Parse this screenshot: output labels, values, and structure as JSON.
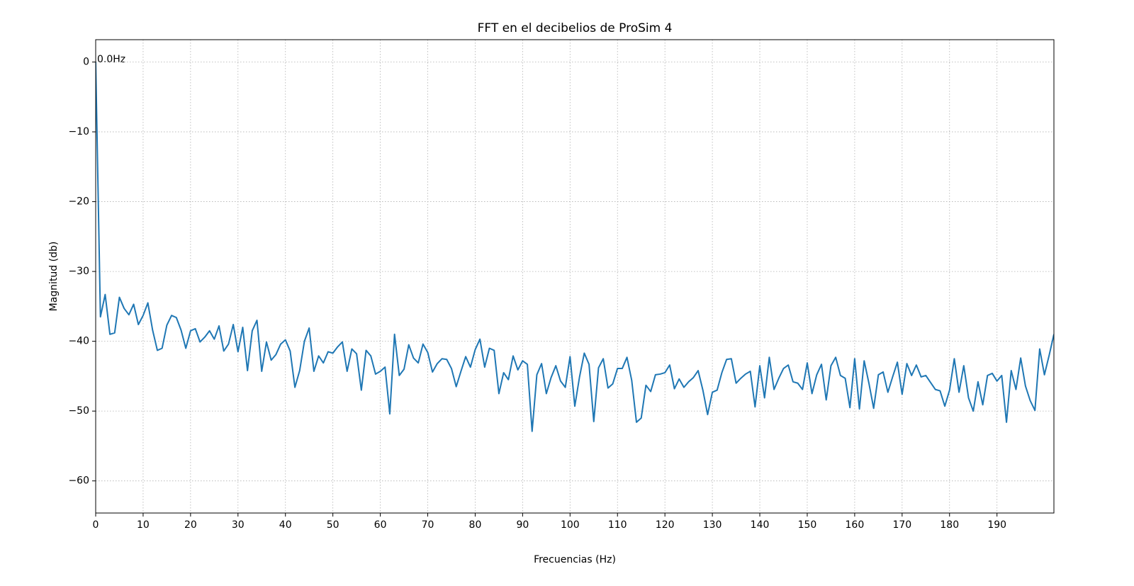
{
  "chart_data": {
    "type": "line",
    "title": "FFT en el decibelios de ProSim 4",
    "x_label": "Frecuencias (Hz)",
    "y_label": "Magnitud (db)",
    "annotation": "0.0Hz",
    "grid": true,
    "xlim": [
      0,
      202
    ],
    "ylim": [
      -64.6,
      3.2
    ],
    "xticks": [
      0,
      10,
      20,
      30,
      40,
      50,
      60,
      70,
      80,
      90,
      100,
      110,
      120,
      130,
      140,
      150,
      160,
      170,
      180,
      190
    ],
    "yticks": [
      0,
      {
        "value": -10,
        "label": "−10"
      },
      {
        "value": -20,
        "label": "−20"
      },
      {
        "value": -30,
        "label": "−30"
      },
      {
        "value": -40,
        "label": "−40"
      },
      {
        "value": -50,
        "label": "−50"
      },
      {
        "value": -60,
        "label": "−60"
      }
    ],
    "x": [
      0,
      1,
      2,
      3,
      4,
      5,
      6,
      7,
      8,
      9,
      10,
      11,
      12,
      13,
      14,
      15,
      16,
      17,
      18,
      19,
      20,
      21,
      22,
      23,
      24,
      25,
      26,
      27,
      28,
      29,
      30,
      31,
      32,
      33,
      34,
      35,
      36,
      37,
      38,
      39,
      40,
      41,
      42,
      43,
      44,
      45,
      46,
      47,
      48,
      49,
      50,
      51,
      52,
      53,
      54,
      55,
      56,
      57,
      58,
      59,
      60,
      61,
      62,
      63,
      64,
      65,
      66,
      67,
      68,
      69,
      70,
      71,
      72,
      73,
      74,
      75,
      76,
      77,
      78,
      79,
      80,
      81,
      82,
      83,
      84,
      85,
      86,
      87,
      88,
      89,
      90,
      91,
      92,
      93,
      94,
      95,
      96,
      97,
      98,
      99,
      100,
      101,
      102,
      103,
      104,
      105,
      106,
      107,
      108,
      109,
      110,
      111,
      112,
      113,
      114,
      115,
      116,
      117,
      118,
      119,
      120,
      121,
      122,
      123,
      124,
      125,
      126,
      127,
      128,
      129,
      130,
      131,
      132,
      133,
      134,
      135,
      136,
      137,
      138,
      139,
      140,
      141,
      142,
      143,
      144,
      145,
      146,
      147,
      148,
      149,
      150,
      151,
      152,
      153,
      154,
      155,
      156,
      157,
      158,
      159,
      160,
      161,
      162,
      163,
      164,
      165,
      166,
      167,
      168,
      169,
      170,
      171,
      172,
      173,
      174,
      175,
      176,
      177,
      178,
      179,
      180,
      181,
      182,
      183,
      184,
      185,
      186,
      187,
      188,
      189,
      190,
      191,
      192,
      193,
      194,
      195,
      196,
      197,
      198,
      199,
      200,
      201,
      202
    ],
    "series": [
      {
        "color": "#1f77b4",
        "values": [
          0,
          -36.5,
          -33.3,
          -39,
          -38.8,
          -33.7,
          -35.3,
          -36.2,
          -34.7,
          -37.6,
          -36.3,
          -34.5,
          -38.4,
          -41.3,
          -41,
          -37.7,
          -36.3,
          -36.6,
          -38.4,
          -41,
          -38.5,
          -38.2,
          -40.1,
          -39.4,
          -38.5,
          -39.7,
          -37.8,
          -41.4,
          -40.4,
          -37.6,
          -41.5,
          -38,
          -44.2,
          -38.5,
          -37,
          -44.3,
          -40.1,
          -42.7,
          -41.9,
          -40.4,
          -39.8,
          -41.4,
          -46.6,
          -44.2,
          -40,
          -38.1,
          -44.3,
          -42.1,
          -43.1,
          -41.5,
          -41.7,
          -40.8,
          -40.1,
          -44.3,
          -41.1,
          -41.8,
          -47,
          -41.3,
          -42.1,
          -44.7,
          -44.3,
          -43.7,
          -50.4,
          -39,
          -44.9,
          -44,
          -40.5,
          -42.4,
          -43.1,
          -40.4,
          -41.6,
          -44.4,
          -43.2,
          -42.5,
          -42.6,
          -43.9,
          -46.5,
          -44.3,
          -42.2,
          -43.7,
          -41.2,
          -39.7,
          -43.7,
          -41,
          -41.3,
          -47.5,
          -44.5,
          -45.5,
          -42.1,
          -44.1,
          -42.8,
          -43.3,
          -52.9,
          -44.8,
          -43.2,
          -47.5,
          -45.2,
          -43.5,
          -45.7,
          -46.6,
          -42.2,
          -49.3,
          -45.1,
          -41.7,
          -43.3,
          -51.5,
          -43.8,
          -42.5,
          -46.7,
          -46.1,
          -43.9,
          -43.9,
          -42.3,
          -45.6,
          -51.6,
          -51,
          -46.3,
          -47.2,
          -44.8,
          -44.7,
          -44.5,
          -43.4,
          -46.8,
          -45.4,
          -46.6,
          -45.8,
          -45.2,
          -44.2,
          -47,
          -50.5,
          -47.3,
          -47,
          -44.5,
          -42.6,
          -42.5,
          -46,
          -45.3,
          -44.7,
          -44.3,
          -49.4,
          -43.5,
          -48.1,
          -42.3,
          -46.9,
          -45.3,
          -43.9,
          -43.4,
          -45.8,
          -46,
          -46.9,
          -43.1,
          -47.5,
          -44.8,
          -43.3,
          -48.4,
          -43.5,
          -42.3,
          -44.9,
          -45.3,
          -49.5,
          -42.5,
          -49.7,
          -42.8,
          -46,
          -49.6,
          -44.8,
          -44.4,
          -47.3,
          -45.1,
          -43,
          -47.6,
          -43.2,
          -44.9,
          -43.4,
          -45.1,
          -44.9,
          -45.9,
          -46.9,
          -47.1,
          -49.3,
          -47,
          -42.5,
          -47.3,
          -43.5,
          -48.1,
          -50,
          -45.8,
          -49.1,
          -44.9,
          -44.6,
          -45.7,
          -44.9,
          -51.6,
          -44.2,
          -46.9,
          -42.4,
          -46.4,
          -48.5,
          -49.9,
          -41.1,
          -44.8,
          -42,
          -39
        ]
      }
    ]
  }
}
